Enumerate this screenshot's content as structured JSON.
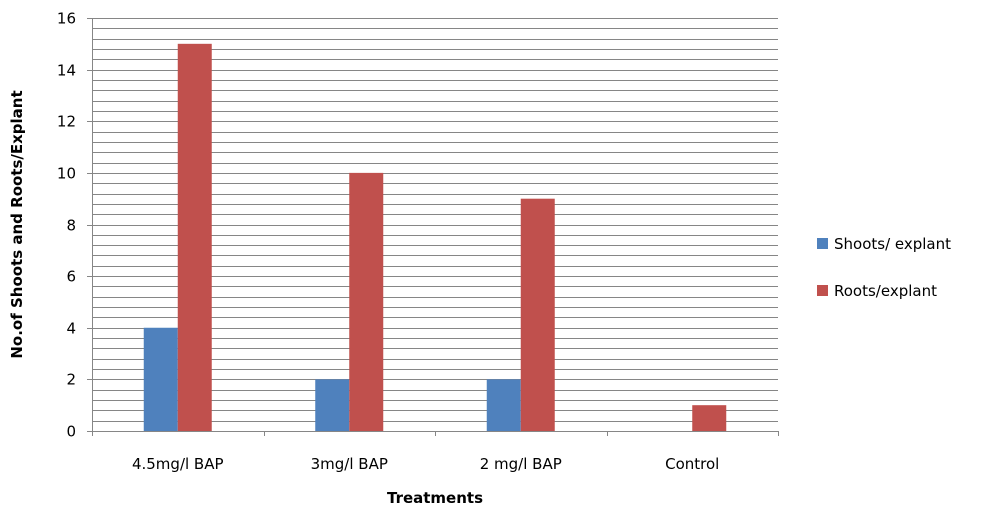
{
  "chart_data": {
    "type": "bar",
    "title": "",
    "xlabel": "Treatments",
    "ylabel": "No.of  Shoots and  Roots/Explant",
    "categories": [
      "4.5mg/l BAP",
      "3mg/l BAP",
      "2 mg/l BAP",
      "Control"
    ],
    "series": [
      {
        "name": "Shoots/ explant",
        "values": [
          4,
          2,
          2,
          0
        ],
        "color": "#4f81bd"
      },
      {
        "name": "Roots/explant",
        "values": [
          15,
          10,
          9,
          1
        ],
        "color": "#c0504d"
      }
    ],
    "ylim": [
      0,
      16
    ],
    "major_ticks": [
      0,
      2,
      4,
      6,
      8,
      10,
      12,
      14,
      16
    ],
    "minor_gridline_step": 0.4,
    "grid": true,
    "legend_position": "right"
  }
}
